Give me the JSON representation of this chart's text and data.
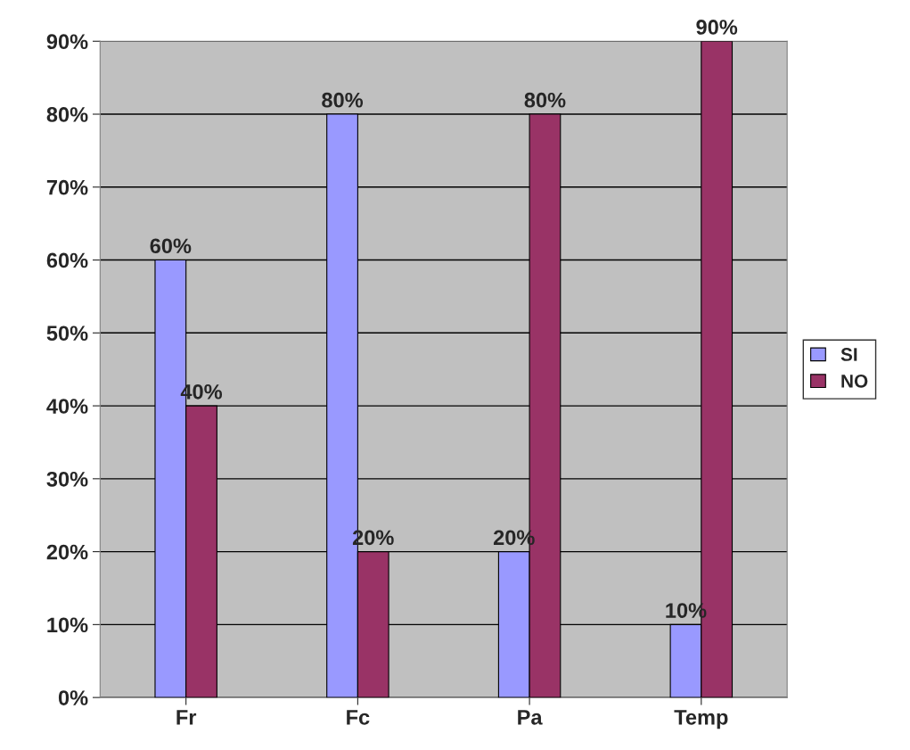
{
  "chart_data": {
    "type": "bar",
    "categories": [
      "Fr",
      "Fc",
      "Pa",
      "Temp"
    ],
    "series": [
      {
        "name": "SI",
        "color": "#9999ff",
        "values": [
          60,
          80,
          20,
          10
        ],
        "value_labels": [
          "60%",
          "80%",
          "20%",
          "10%"
        ]
      },
      {
        "name": "NO",
        "color": "#993366",
        "values": [
          40,
          20,
          80,
          90
        ],
        "value_labels": [
          "40%",
          "20%",
          "80%",
          "90%"
        ]
      }
    ],
    "ylim": [
      0,
      90
    ],
    "yticks": [
      {
        "value": 0,
        "label": "0%"
      },
      {
        "value": 10,
        "label": "10%"
      },
      {
        "value": 20,
        "label": "20%"
      },
      {
        "value": 30,
        "label": "30%"
      },
      {
        "value": 40,
        "label": "40%"
      },
      {
        "value": 50,
        "label": "50%"
      },
      {
        "value": 60,
        "label": "60%"
      },
      {
        "value": 70,
        "label": "70%"
      },
      {
        "value": 80,
        "label": "80%"
      },
      {
        "value": 90,
        "label": "90%"
      }
    ],
    "grid": "y",
    "legend": "right"
  }
}
